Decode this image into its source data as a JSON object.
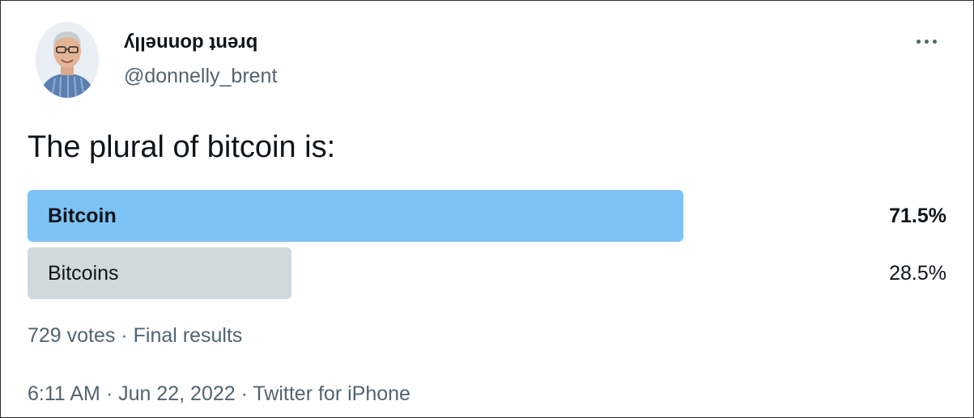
{
  "tweet": {
    "display_name": "brent donnelly",
    "handle": "@donnelly_brent",
    "more_icon": "more-horizontal-icon",
    "text": "The plural of bitcoin is:",
    "poll": {
      "options": [
        {
          "label": "Bitcoin",
          "percent_text": "71.5%",
          "percent": 71.5,
          "winner": true
        },
        {
          "label": "Bitcoins",
          "percent_text": "28.5%",
          "percent": 28.5,
          "winner": false
        }
      ],
      "summary": "729 votes · Final results"
    },
    "timestamp": "6:11 AM · Jun 22, 2022 · Twitter for iPhone"
  },
  "colors": {
    "winner_bar": "#7cc2f4",
    "loser_bar": "#cfd9de",
    "secondary_text": "#536471"
  }
}
